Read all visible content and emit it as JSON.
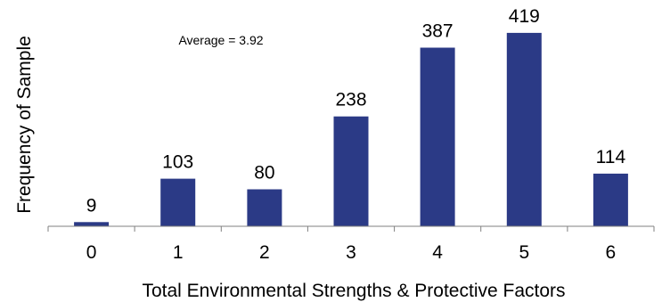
{
  "chart_data": {
    "type": "bar",
    "categories": [
      "0",
      "1",
      "2",
      "3",
      "4",
      "5",
      "6"
    ],
    "values": [
      9,
      103,
      80,
      238,
      387,
      419,
      114
    ],
    "title": "",
    "xlabel": "Total Environmental Strengths & Protective Factors",
    "ylabel": "Frequency of Sample",
    "ylim": [
      0,
      440
    ],
    "annotation": "Average = 3.92",
    "grid": false,
    "legend": "none",
    "colors": {
      "bar": "#2b3a86",
      "axis": "#808080",
      "text": "#000000"
    }
  }
}
